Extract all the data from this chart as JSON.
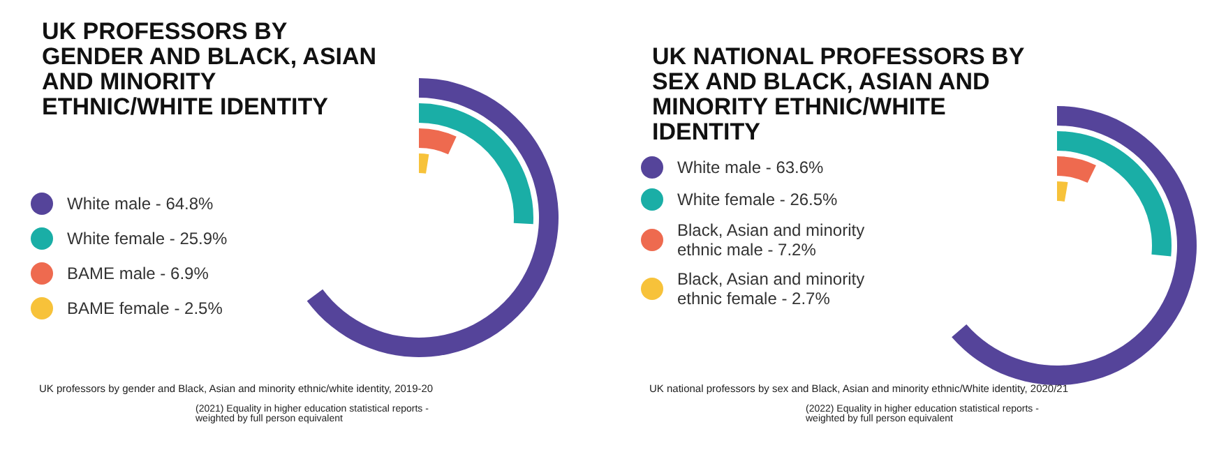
{
  "chart_data": [
    {
      "type": "other",
      "title": "UK PROFESSORS BY GENDER AND BLACK, ASIAN AND MINORITY ETHNIC/WHITE IDENTITY",
      "categories": [
        null
      ],
      "series": [
        {
          "name": "White male -",
          "color": "#55449a",
          "values": [
            64.8
          ],
          "value_labels": [
            "64.8%"
          ]
        },
        {
          "name": "White female -",
          "color": "#1aaea6",
          "values": [
            25.9
          ],
          "value_labels": [
            "25.9%"
          ]
        },
        {
          "name": "BAME male -",
          "color": "#ee6a4f",
          "values": [
            6.9
          ],
          "value_labels": [
            "6.9%"
          ]
        },
        {
          "name": "BAME female -",
          "color": "#f7c23a",
          "values": [
            2.5
          ],
          "value_labels": [
            "2.5%"
          ]
        }
      ],
      "legend": "left",
      "annotations": [
        "UK professors by gender and Black, Asian and minority ethnic/white identity, 2019-20",
        "(2021) Equality in higher education statistical reports - weighted by full person equivalent"
      ]
    },
    {
      "type": "other",
      "title": "UK NATIONAL PROFESSORS BY SEX AND BLACK, ASIAN AND MINORITY ETHNIC/WHITE IDENTITY",
      "categories": [
        null
      ],
      "series": [
        {
          "name": "White male -",
          "color": "#55449a",
          "values": [
            63.6
          ],
          "value_labels": [
            "63.6%"
          ]
        },
        {
          "name": "White female -",
          "color": "#1aaea6",
          "values": [
            26.5
          ],
          "value_labels": [
            "26.5%"
          ]
        },
        {
          "name": "Black, Asian and minority ethnic male -",
          "color": "#ee6a4f",
          "values": [
            7.2
          ],
          "value_labels": [
            "7.2%"
          ]
        },
        {
          "name": "Black, Asian and minority ethnic female -",
          "color": "#f7c23a",
          "values": [
            2.7
          ],
          "value_labels": [
            "2.7%"
          ]
        }
      ],
      "legend": "left",
      "annotations": [
        "UK national professors by sex and Black, Asian and minority ethnic/White identity, 2020/21",
        "(2022) Equality in higher education statistical reports - weighted by full person equivalent"
      ]
    }
  ]
}
